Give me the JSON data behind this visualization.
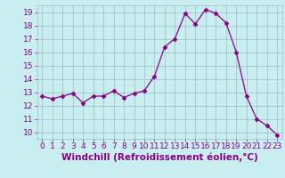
{
  "x": [
    0,
    1,
    2,
    3,
    4,
    5,
    6,
    7,
    8,
    9,
    10,
    11,
    12,
    13,
    14,
    15,
    16,
    17,
    18,
    19,
    20,
    21,
    22,
    23
  ],
  "y": [
    12.7,
    12.5,
    12.7,
    12.9,
    12.2,
    12.7,
    12.7,
    13.1,
    12.6,
    12.9,
    13.1,
    14.2,
    16.4,
    17.0,
    18.9,
    18.1,
    19.2,
    18.9,
    18.2,
    16.0,
    12.7,
    11.0,
    10.5,
    9.8
  ],
  "line_color": "#8b008b",
  "marker": "D",
  "marker_size": 2.5,
  "bg_color": "#c8eef0",
  "grid_color": "#9dbcca",
  "xlabel": "Windchill (Refroidissement éolien,°C)",
  "xlim": [
    -0.5,
    23.5
  ],
  "ylim": [
    9.5,
    19.5
  ],
  "yticks": [
    10,
    11,
    12,
    13,
    14,
    15,
    16,
    17,
    18,
    19
  ],
  "xticks": [
    0,
    1,
    2,
    3,
    4,
    5,
    6,
    7,
    8,
    9,
    10,
    11,
    12,
    13,
    14,
    15,
    16,
    17,
    18,
    19,
    20,
    21,
    22,
    23
  ],
  "tick_label_size": 6.5,
  "xlabel_size": 7.5,
  "label_color": "#8b008b"
}
